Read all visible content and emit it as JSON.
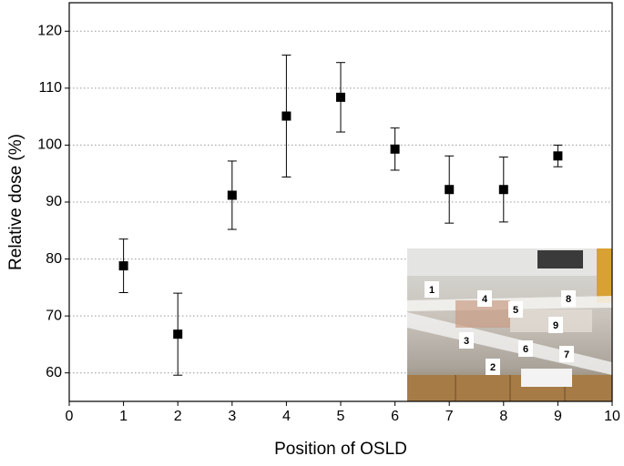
{
  "chart_data": {
    "type": "scatter",
    "x_label": "Position of OSLD",
    "y_label": "Relative dose (%)",
    "x": [
      1,
      2,
      3,
      4,
      5,
      6,
      7,
      8,
      9
    ],
    "values": [
      78.8,
      66.8,
      91.2,
      105.1,
      108.4,
      99.3,
      92.2,
      92.2,
      98.1
    ],
    "errors": [
      4.7,
      7.2,
      6.0,
      10.7,
      6.1,
      3.7,
      5.9,
      5.7,
      1.9
    ],
    "color": "#000000",
    "xlim": [
      0,
      10
    ],
    "xticks": [
      0,
      1,
      2,
      3,
      4,
      5,
      6,
      7,
      8,
      9,
      10
    ],
    "ylim": [
      55,
      125
    ],
    "yticks": [
      60,
      70,
      80,
      90,
      100,
      110,
      120
    ],
    "grid": true,
    "inset_labels": [
      "1",
      "2",
      "3",
      "4",
      "5",
      "6",
      "7",
      "8",
      "9"
    ]
  }
}
